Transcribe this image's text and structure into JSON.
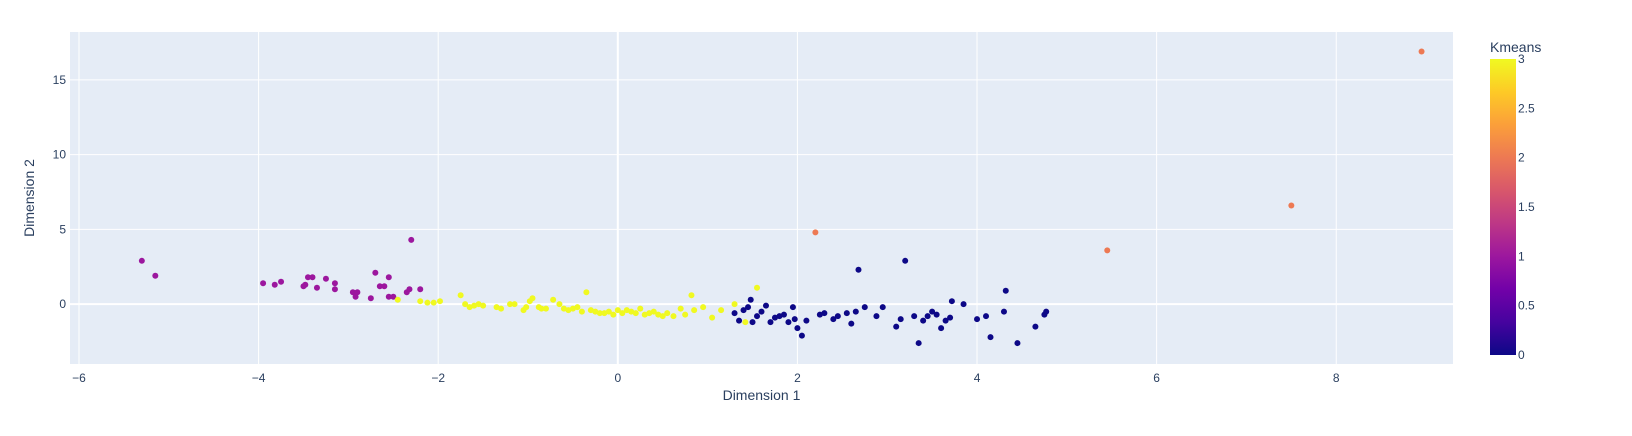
{
  "chart_data": {
    "type": "scatter",
    "title": "",
    "xlabel": "Dimension 1",
    "ylabel": "Dimension 2",
    "xlim": [
      -6.1,
      9.3
    ],
    "ylim": [
      -4.0,
      18.2
    ],
    "x_ticks": [
      -6,
      -4,
      -2,
      0,
      2,
      4,
      6,
      8
    ],
    "x_tick_labels": [
      "−6",
      "−4",
      "−2",
      "0",
      "2",
      "4",
      "6",
      "8"
    ],
    "y_ticks": [
      0,
      5,
      10,
      15
    ],
    "y_tick_labels": [
      "0",
      "5",
      "10",
      "15"
    ],
    "grid": true,
    "colorbar": {
      "title": "Kmeans",
      "range": [
        0,
        3
      ],
      "ticks": [
        0,
        0.5,
        1,
        1.5,
        2,
        2.5,
        3
      ],
      "tick_labels": [
        "0",
        "0.5",
        "1",
        "1.5",
        "2",
        "2.5",
        "3"
      ],
      "colorscale": [
        "#0d0887",
        "#46039f",
        "#7201a8",
        "#9c179e",
        "#bd3786",
        "#d8576b",
        "#ed7953",
        "#fb9f3a",
        "#fdca26",
        "#f0f921"
      ]
    },
    "colors": {
      "plot_bg": "#e5ecf6",
      "grid": "#ffffff",
      "text": "#2a3f5f"
    },
    "series": [
      {
        "cluster": 0,
        "color": "#0d0887",
        "points": [
          [
            1.3,
            -0.6
          ],
          [
            1.35,
            -1.1
          ],
          [
            1.4,
            -0.4
          ],
          [
            1.45,
            -0.2
          ],
          [
            1.48,
            0.3
          ],
          [
            1.5,
            -1.2
          ],
          [
            1.55,
            -0.8
          ],
          [
            1.6,
            -0.5
          ],
          [
            1.65,
            -0.1
          ],
          [
            1.7,
            -1.2
          ],
          [
            1.75,
            -0.9
          ],
          [
            1.8,
            -0.8
          ],
          [
            1.85,
            -0.7
          ],
          [
            1.9,
            -1.2
          ],
          [
            1.95,
            -0.2
          ],
          [
            1.97,
            -1.0
          ],
          [
            2.0,
            -1.6
          ],
          [
            2.05,
            -2.1
          ],
          [
            2.1,
            -1.1
          ],
          [
            2.25,
            -0.7
          ],
          [
            2.3,
            -0.6
          ],
          [
            2.4,
            -1.0
          ],
          [
            2.45,
            -0.8
          ],
          [
            2.55,
            -0.6
          ],
          [
            2.6,
            -1.3
          ],
          [
            2.65,
            -0.5
          ],
          [
            2.68,
            2.3
          ],
          [
            2.75,
            -0.2
          ],
          [
            2.88,
            -0.8
          ],
          [
            2.95,
            -0.2
          ],
          [
            3.1,
            -1.5
          ],
          [
            3.15,
            -1.0
          ],
          [
            3.2,
            2.9
          ],
          [
            3.3,
            -0.8
          ],
          [
            3.35,
            -2.6
          ],
          [
            3.4,
            -1.1
          ],
          [
            3.45,
            -0.8
          ],
          [
            3.5,
            -0.5
          ],
          [
            3.55,
            -0.7
          ],
          [
            3.6,
            -1.6
          ],
          [
            3.65,
            -1.1
          ],
          [
            3.7,
            -0.9
          ],
          [
            3.72,
            0.2
          ],
          [
            3.85,
            0.0
          ],
          [
            4.0,
            -1.0
          ],
          [
            4.1,
            -0.8
          ],
          [
            4.15,
            -2.2
          ],
          [
            4.3,
            -0.5
          ],
          [
            4.32,
            0.9
          ],
          [
            4.45,
            -2.6
          ],
          [
            4.65,
            -1.5
          ],
          [
            4.75,
            -0.7
          ],
          [
            4.77,
            -0.5
          ]
        ]
      },
      {
        "cluster": 1,
        "color": "#9c179e",
        "points": [
          [
            -5.3,
            2.9
          ],
          [
            -5.15,
            1.9
          ],
          [
            -3.95,
            1.4
          ],
          [
            -3.82,
            1.3
          ],
          [
            -3.75,
            1.5
          ],
          [
            -3.5,
            1.2
          ],
          [
            -3.48,
            1.3
          ],
          [
            -3.45,
            1.8
          ],
          [
            -3.4,
            1.8
          ],
          [
            -3.35,
            1.1
          ],
          [
            -3.25,
            1.7
          ],
          [
            -3.15,
            1.4
          ],
          [
            -3.15,
            1.0
          ],
          [
            -2.95,
            0.8
          ],
          [
            -2.92,
            0.5
          ],
          [
            -2.9,
            0.8
          ],
          [
            -2.75,
            0.4
          ],
          [
            -2.7,
            2.1
          ],
          [
            -2.65,
            1.2
          ],
          [
            -2.6,
            1.2
          ],
          [
            -2.55,
            1.8
          ],
          [
            -2.55,
            0.5
          ],
          [
            -2.5,
            0.5
          ],
          [
            -2.35,
            0.8
          ],
          [
            -2.32,
            1.0
          ],
          [
            -2.3,
            4.3
          ],
          [
            -2.2,
            1.0
          ]
        ]
      },
      {
        "cluster": 2,
        "color": "#ed7953",
        "points": [
          [
            2.2,
            4.8
          ],
          [
            5.45,
            3.6
          ],
          [
            7.5,
            6.6
          ],
          [
            8.95,
            16.9
          ]
        ]
      },
      {
        "cluster": 3,
        "color": "#f0f921",
        "points": [
          [
            -2.45,
            0.3
          ],
          [
            -2.2,
            0.2
          ],
          [
            -2.12,
            0.1
          ],
          [
            -2.05,
            0.1
          ],
          [
            -1.98,
            0.2
          ],
          [
            -1.75,
            0.6
          ],
          [
            -1.7,
            0.0
          ],
          [
            -1.65,
            -0.2
          ],
          [
            -1.6,
            -0.1
          ],
          [
            -1.55,
            0.0
          ],
          [
            -1.5,
            -0.1
          ],
          [
            -1.35,
            -0.2
          ],
          [
            -1.3,
            -0.3
          ],
          [
            -1.2,
            0.0
          ],
          [
            -1.15,
            0.0
          ],
          [
            -1.05,
            -0.4
          ],
          [
            -1.02,
            -0.2
          ],
          [
            -0.98,
            0.2
          ],
          [
            -0.95,
            0.4
          ],
          [
            -0.88,
            -0.2
          ],
          [
            -0.85,
            -0.3
          ],
          [
            -0.8,
            -0.3
          ],
          [
            -0.72,
            0.3
          ],
          [
            -0.65,
            0.0
          ],
          [
            -0.6,
            -0.3
          ],
          [
            -0.55,
            -0.4
          ],
          [
            -0.5,
            -0.3
          ],
          [
            -0.45,
            -0.2
          ],
          [
            -0.4,
            -0.5
          ],
          [
            -0.35,
            0.8
          ],
          [
            -0.3,
            -0.4
          ],
          [
            -0.25,
            -0.5
          ],
          [
            -0.2,
            -0.6
          ],
          [
            -0.15,
            -0.6
          ],
          [
            -0.1,
            -0.5
          ],
          [
            -0.05,
            -0.7
          ],
          [
            0.0,
            -0.4
          ],
          [
            0.05,
            -0.6
          ],
          [
            0.1,
            -0.4
          ],
          [
            0.15,
            -0.5
          ],
          [
            0.2,
            -0.6
          ],
          [
            0.25,
            -0.3
          ],
          [
            0.3,
            -0.7
          ],
          [
            0.35,
            -0.6
          ],
          [
            0.4,
            -0.5
          ],
          [
            0.45,
            -0.7
          ],
          [
            0.5,
            -0.8
          ],
          [
            0.55,
            -0.6
          ],
          [
            0.62,
            -0.8
          ],
          [
            0.7,
            -0.3
          ],
          [
            0.75,
            -0.7
          ],
          [
            0.82,
            0.6
          ],
          [
            0.85,
            -0.4
          ],
          [
            0.95,
            -0.2
          ],
          [
            1.05,
            -0.9
          ],
          [
            1.15,
            -0.4
          ],
          [
            1.3,
            0.0
          ],
          [
            1.42,
            -1.2
          ],
          [
            1.55,
            1.1
          ]
        ]
      }
    ]
  }
}
